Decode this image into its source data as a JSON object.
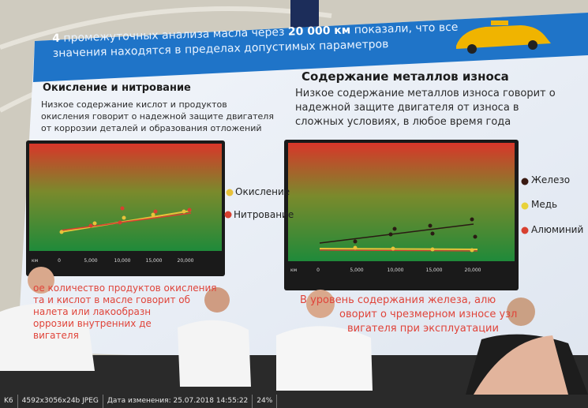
{
  "slide": {
    "header": {
      "parts": [
        "4",
        " промежуточных анализа масла через ",
        "20 000 км",
        " показали, что все",
        "значения находятся в пределах допустимых параметров"
      ]
    },
    "left": {
      "title": "Окисление и нитрование",
      "text": [
        "Низкое содержание кислот и продуктов",
        "окисления говорит о надежной защите двигателя",
        "от коррозии деталей и образования отложений"
      ],
      "unit": "км",
      "xticks": [
        "0",
        "5,000",
        "10,000",
        "15,000",
        "20,000"
      ],
      "legend": [
        "Окисление",
        "Нитрование"
      ],
      "note": [
        "ое количество продуктов окисления",
        "та и кислот в масле говорит об",
        "налета или лакообразн",
        "оррозии внутренних де",
        "вигателя"
      ]
    },
    "right": {
      "title": "Содержание металлов износа",
      "text": [
        "Низкое содержание металлов износа говорит о",
        "надежной защите двигателя от износа в",
        "сложных условиях, в любое время года"
      ],
      "unit": "км",
      "xticks": [
        "0",
        "5,000",
        "10,000",
        "15,000",
        "20,000"
      ],
      "legend": [
        "Железо",
        "Медь",
        "Алюминий"
      ],
      "note": [
        "В",
        "уровень содержания железа, алю",
        "оворит о чрезмерном износе узл",
        "вигателя при эксплуатации"
      ]
    }
  },
  "status_bar": [
    "K6",
    "4592x3056x24b JPEG",
    "Дата изменения: 25.07.2018 14:55:22",
    "24%"
  ]
}
